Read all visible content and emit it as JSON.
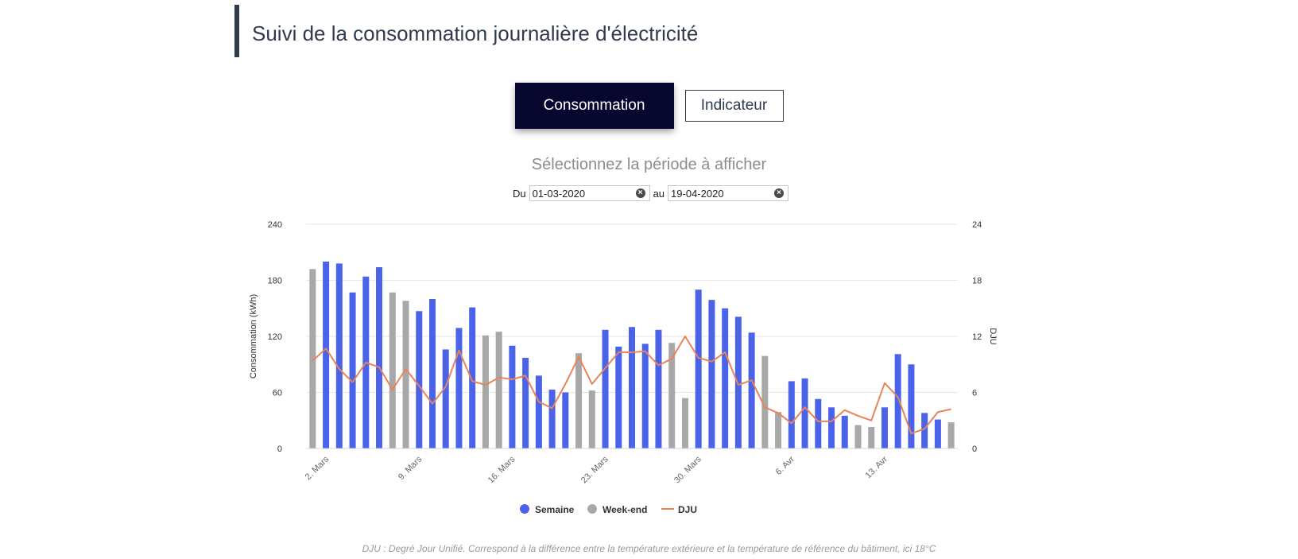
{
  "page": {
    "title": "Suivi de la consommation journalière d'électricité"
  },
  "tabs": [
    {
      "label": "Consommation",
      "active": true
    },
    {
      "label": "Indicateur",
      "active": false
    }
  ],
  "period": {
    "title": "Sélectionnez la période à afficher",
    "from_label": "Du",
    "from_value": "01-03-2020",
    "to_label": "au",
    "to_value": "19-04-2020"
  },
  "footnote": "DJU : Degré Jour Unifié. Correspond à la différence entre la température extérieure et la température de référence du bâtiment, ici 18°C",
  "chart_data": {
    "type": "bar",
    "title": "",
    "xlabel": "",
    "ylabel": "Consommation (kWh)",
    "y2label": "DJU",
    "ylim": [
      0,
      240
    ],
    "y2lim": [
      0,
      24
    ],
    "yticks": [
      "0",
      "60",
      "120",
      "180",
      "240"
    ],
    "y2ticks": [
      "0",
      "6",
      "12",
      "18",
      "24"
    ],
    "x_tick_labels": [
      "2. Mars",
      "9. Mars",
      "16. Mars",
      "23. Mars",
      "30. Mars",
      "6. Avr",
      "13. Avr"
    ],
    "x_tick_indices": [
      1,
      8,
      15,
      22,
      29,
      36,
      43
    ],
    "categories": [
      "01-03",
      "02-03",
      "03-03",
      "04-03",
      "05-03",
      "06-03",
      "07-03",
      "08-03",
      "09-03",
      "10-03",
      "11-03",
      "12-03",
      "13-03",
      "14-03",
      "15-03",
      "16-03",
      "17-03",
      "18-03",
      "19-03",
      "20-03",
      "21-03",
      "22-03",
      "23-03",
      "24-03",
      "25-03",
      "26-03",
      "27-03",
      "28-03",
      "29-03",
      "30-03",
      "31-03",
      "01-04",
      "02-04",
      "03-04",
      "04-04",
      "05-04",
      "06-04",
      "07-04",
      "08-04",
      "09-04",
      "10-04",
      "11-04",
      "12-04",
      "13-04",
      "14-04",
      "15-04",
      "16-04",
      "17-04",
      "18-04"
    ],
    "day_type": [
      "we",
      "sem",
      "sem",
      "sem",
      "sem",
      "sem",
      "we",
      "we",
      "sem",
      "sem",
      "sem",
      "sem",
      "sem",
      "we",
      "we",
      "sem",
      "sem",
      "sem",
      "sem",
      "sem",
      "we",
      "we",
      "sem",
      "sem",
      "sem",
      "sem",
      "sem",
      "we",
      "we",
      "sem",
      "sem",
      "sem",
      "sem",
      "sem",
      "we",
      "we",
      "sem",
      "sem",
      "sem",
      "sem",
      "sem",
      "we",
      "we",
      "sem",
      "sem",
      "sem",
      "sem",
      "sem",
      "we"
    ],
    "consommation": [
      192,
      200,
      198,
      167,
      184,
      194,
      167,
      158,
      147,
      160,
      106,
      129,
      151,
      121,
      125,
      110,
      97,
      78,
      63,
      60,
      102,
      62,
      127,
      109,
      130,
      112,
      127,
      113,
      54,
      170,
      159,
      150,
      141,
      124,
      99,
      39,
      72,
      75,
      53,
      44,
      35,
      25,
      23,
      44,
      101,
      90,
      38,
      31,
      28
    ],
    "dju": [
      9.4,
      10.7,
      8.5,
      7.1,
      9.2,
      8.7,
      6.3,
      8.5,
      6.7,
      4.8,
      6.6,
      10.5,
      7.2,
      6.8,
      7.6,
      7.4,
      7.8,
      5.0,
      4.3,
      6.9,
      9.8,
      6.9,
      8.6,
      10.3,
      10.3,
      10.4,
      8.9,
      9.6,
      12.0,
      9.7,
      9.3,
      10.3,
      6.8,
      7.3,
      4.4,
      3.8,
      2.7,
      4.4,
      2.9,
      2.9,
      4.1,
      3.5,
      3.0,
      7.0,
      5.5,
      1.6,
      2.1,
      3.9,
      4.2
    ],
    "legend": [
      {
        "name": "Semaine",
        "color": "#4a63e8",
        "shape": "circle"
      },
      {
        "name": "Week-end",
        "color": "#a8a8a8",
        "shape": "circle"
      },
      {
        "name": "DJU",
        "color": "#e8835a",
        "shape": "line"
      }
    ],
    "grid": true,
    "legend_position": "bottom-center"
  }
}
